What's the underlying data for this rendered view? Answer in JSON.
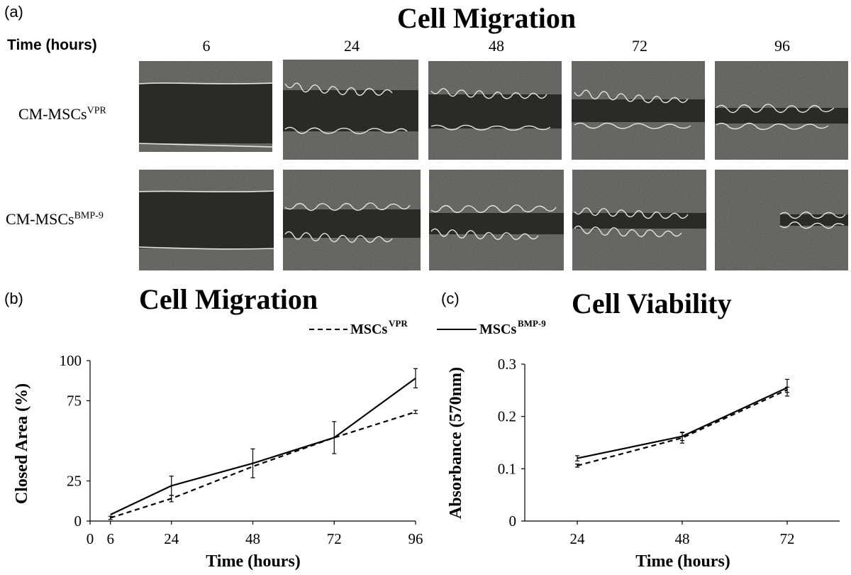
{
  "panel_a": {
    "letter": "(a)",
    "title": "Cell Migration",
    "time_label": "Time (hours)",
    "times": [
      "6",
      "24",
      "48",
      "72",
      "96"
    ],
    "rows": [
      {
        "label": "CM-MSCs",
        "sup": "VPR"
      },
      {
        "label": "CM-MSCs",
        "sup": "BMP-9"
      }
    ],
    "image_colors": {
      "cells": "#4d4c48",
      "gap": "#2a2a27",
      "edge": "#e6e6e0"
    }
  },
  "panel_b": {
    "letter": "(b)",
    "title": "Cell Migration"
  },
  "panel_c": {
    "letter": "(c)",
    "title": "Cell Viability"
  },
  "legend": [
    {
      "name": "MSCs",
      "sup": "VPR",
      "style": "dashed"
    },
    {
      "name": "MSCs",
      "sup": "BMP-9",
      "style": "solid"
    }
  ],
  "chart_data": [
    {
      "type": "line",
      "title": "Cell Migration",
      "xlabel": "Time (hours)",
      "ylabel": "Closed Area (%)",
      "xlim": [
        0,
        96
      ],
      "ylim": [
        0,
        100
      ],
      "xticks": [
        "0",
        "6",
        "24",
        "48",
        "72",
        "96"
      ],
      "yticks": [
        "0",
        "25",
        "75",
        "100"
      ],
      "series": [
        {
          "name": "MSCs VPR",
          "style": "dashed",
          "x": [
            6,
            24,
            48,
            72,
            96
          ],
          "y": [
            2,
            14,
            34,
            52,
            68
          ],
          "err": [
            1,
            2,
            0,
            0,
            1
          ]
        },
        {
          "name": "MSCs BMP-9",
          "style": "solid",
          "x": [
            6,
            24,
            48,
            72,
            96
          ],
          "y": [
            4,
            22,
            36,
            52,
            89
          ],
          "err": [
            0,
            6,
            9,
            10,
            6
          ]
        }
      ]
    },
    {
      "type": "line",
      "title": "Cell Viability",
      "xlabel": "Time (hours)",
      "ylabel": "Absorbance (570nm)",
      "xlim": [
        12,
        84
      ],
      "ylim": [
        0,
        0.3
      ],
      "xticks": [
        "24",
        "48",
        "72"
      ],
      "yticks": [
        "0",
        "0.1",
        "0.2",
        "0.3"
      ],
      "series": [
        {
          "name": "MSCs VPR",
          "style": "dashed",
          "x": [
            24,
            48,
            72
          ],
          "y": [
            0.106,
            0.159,
            0.251
          ],
          "err": [
            0.003,
            0.01,
            0.005
          ]
        },
        {
          "name": "MSCs BMP-9",
          "style": "solid",
          "x": [
            24,
            48,
            72
          ],
          "y": [
            0.12,
            0.162,
            0.255
          ],
          "err": [
            0.005,
            0.008,
            0.016
          ]
        }
      ]
    }
  ]
}
